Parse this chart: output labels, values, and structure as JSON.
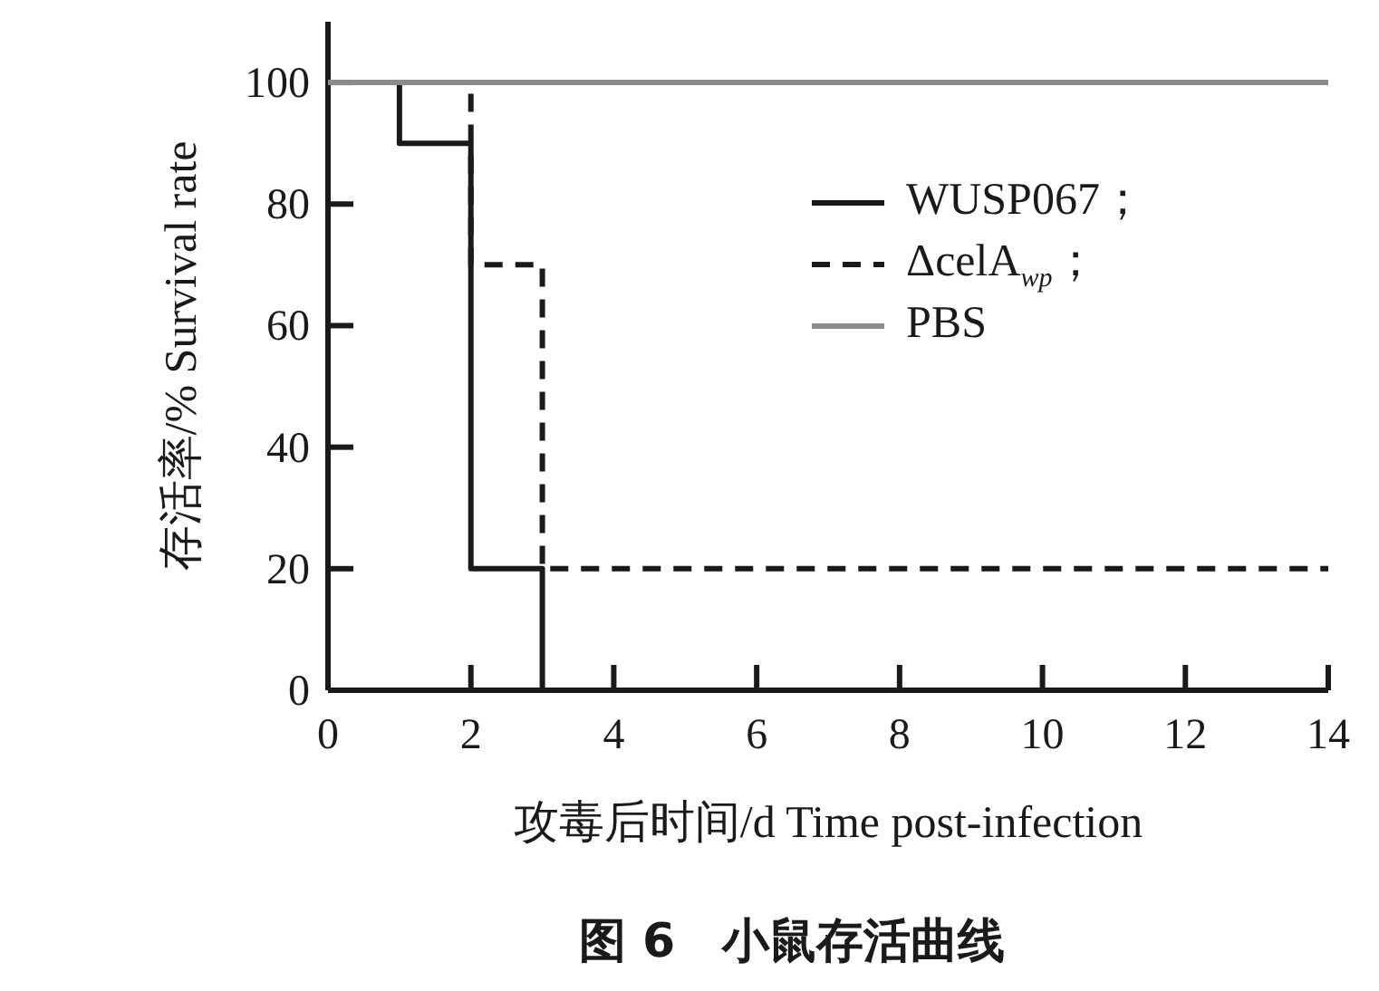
{
  "chart_data": {
    "type": "step",
    "title": "图 6　小鼠存活曲线",
    "xlabel": "攻毒后时间/d   Time post-infection",
    "ylabel": "存活率/%   Survival rate",
    "xlim": [
      0,
      14
    ],
    "ylim": [
      0,
      110
    ],
    "xticks": [
      0,
      2,
      4,
      6,
      8,
      10,
      12,
      14
    ],
    "yticks": [
      0,
      20,
      40,
      60,
      80,
      100
    ],
    "legend": "top right",
    "series": [
      {
        "name": "WUSP067；",
        "color": "#1a1a1a",
        "line_style": "solid",
        "x": [
          0,
          1,
          2,
          3,
          14
        ],
        "values": [
          100,
          90,
          20,
          0,
          0
        ]
      },
      {
        "name": "ΔcelA$_{wp}$；",
        "color": "#1a1a1a",
        "line_style": "dashed",
        "x": [
          0,
          2,
          3,
          14
        ],
        "values": [
          100,
          70,
          20,
          20
        ]
      },
      {
        "name": "PBS",
        "color": "#8c8c8c",
        "line_style": "solid",
        "x": [
          0,
          14
        ],
        "values": [
          100,
          100
        ]
      }
    ]
  }
}
